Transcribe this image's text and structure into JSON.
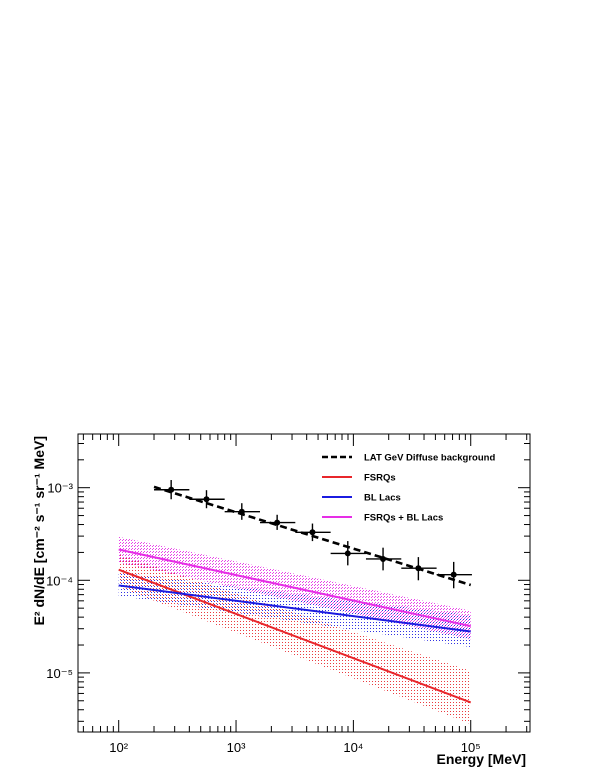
{
  "chart_data": {
    "type": "line",
    "xlabel": "Energy [MeV]",
    "ylabel": "E² dN/dE [cm⁻² s⁻¹ sr⁻¹ MeV]",
    "xscale": "log",
    "yscale": "log",
    "xlim": [
      45,
      320000
    ],
    "ylim": [
      2.3e-06,
      0.0038
    ],
    "grid": false,
    "legend_position": "top-right",
    "x_ticks": [
      {
        "value": 100,
        "label": "10²"
      },
      {
        "value": 1000,
        "label": "10³"
      },
      {
        "value": 10000,
        "label": "10⁴"
      },
      {
        "value": 100000,
        "label": "10⁵"
      }
    ],
    "y_ticks": [
      {
        "value": 1e-05,
        "label": "10⁻⁵"
      },
      {
        "value": 0.0001,
        "label": "10⁻⁴"
      },
      {
        "value": 0.001,
        "label": "10⁻³"
      }
    ],
    "series": [
      {
        "name": "LAT GeV Diffuse background",
        "kind": "dashed-line",
        "color": "#000000",
        "x": [
          200,
          100000
        ],
        "y": [
          0.00102,
          8.9e-05
        ]
      },
      {
        "name": "FSRQs",
        "kind": "line-band",
        "color": "#e8262b",
        "x": [
          100,
          100000
        ],
        "y": [
          0.00013,
          4.8e-06
        ],
        "band_low": [
          8.5e-05,
          2.8e-06
        ],
        "band_high": [
          0.00019,
          1.05e-05
        ]
      },
      {
        "name": "BL Lacs",
        "kind": "line-band",
        "color": "#1b1be0",
        "x": [
          100,
          100000
        ],
        "y": [
          8.8e-05,
          2.8e-05
        ],
        "band_low": [
          6.8e-05,
          1.9e-05
        ],
        "band_high": [
          0.000122,
          4.2e-05
        ]
      },
      {
        "name": "FSRQs + BL Lacs",
        "kind": "line-band",
        "color": "#e62ee6",
        "x": [
          100,
          100000
        ],
        "y": [
          0.000215,
          3.2e-05
        ],
        "band_low": [
          0.000155,
          2.3e-05
        ],
        "band_high": [
          0.000295,
          4.7e-05
        ]
      }
    ],
    "points": {
      "name": "data",
      "x": [
        280,
        560,
        1120,
        2240,
        4480,
        8960,
        17900,
        35800,
        71600
      ],
      "y": [
        0.00095,
        0.00075,
        0.00055,
        0.00042,
        0.00033,
        0.000195,
        0.00017,
        0.000135,
        0.000115
      ],
      "x_low": [
        200,
        400,
        800,
        1600,
        3200,
        6400,
        12800,
        25600,
        51200
      ],
      "x_high": [
        400,
        800,
        1600,
        3200,
        6400,
        12800,
        25600,
        51200,
        102400
      ],
      "y_low": [
        0.00075,
        0.0006,
        0.00045,
        0.00035,
        0.000265,
        0.000145,
        0.000128,
        0.0001,
        8.2e-05
      ],
      "y_high": [
        0.00121,
        0.00094,
        0.00068,
        0.00051,
        0.00041,
        0.000265,
        0.000225,
        0.000178,
        0.000158
      ]
    }
  }
}
